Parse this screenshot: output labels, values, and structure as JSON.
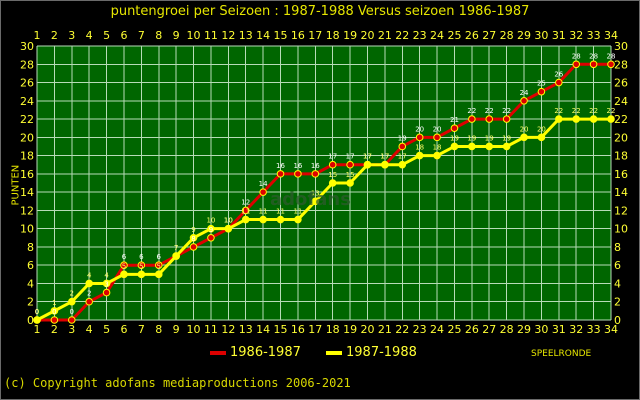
{
  "colors": {
    "background": "#000000",
    "plot_background": "#006600",
    "grid": "#b7dcb7",
    "axis_text": "#ffff33",
    "series_1986_1987": "#dd0000",
    "series_1987_1988": "#ffff00",
    "marker_edge": "#ffff00",
    "legend_text": "#ffff33"
  },
  "chart_data": {
    "type": "line",
    "title": "puntengroei per Seizoen : 1987-1988 Versus seizoen 1986-1987",
    "xlabel": "SPEELRONDE",
    "ylabel": "PUNTEN",
    "x": [
      1,
      2,
      3,
      4,
      5,
      6,
      7,
      8,
      9,
      10,
      11,
      12,
      13,
      14,
      15,
      16,
      17,
      18,
      19,
      20,
      21,
      22,
      23,
      24,
      25,
      26,
      27,
      28,
      29,
      30,
      31,
      32,
      33,
      34
    ],
    "xlim": [
      1,
      34
    ],
    "ylim": [
      0,
      30
    ],
    "y_ticks": [
      0,
      2,
      4,
      6,
      8,
      10,
      12,
      14,
      16,
      18,
      20,
      22,
      24,
      26,
      28,
      30
    ],
    "grid": true,
    "legend_position": "bottom",
    "series": [
      {
        "name": "1986-1987",
        "color": "#dd0000",
        "values": [
          0,
          0,
          0,
          2,
          3,
          6,
          6,
          6,
          7,
          8,
          9,
          10,
          12,
          14,
          16,
          16,
          16,
          17,
          17,
          17,
          17,
          19,
          20,
          20,
          21,
          22,
          22,
          22,
          24,
          25,
          26,
          28,
          28,
          28
        ]
      },
      {
        "name": "1987-1988",
        "color": "#ffff00",
        "values": [
          0,
          1,
          2,
          4,
          4,
          5,
          5,
          5,
          7,
          9,
          10,
          10,
          11,
          11,
          11,
          11,
          13,
          15,
          15,
          17,
          17,
          17,
          18,
          18,
          19,
          19,
          19,
          19,
          20,
          20,
          22,
          22,
          22,
          22
        ]
      }
    ]
  },
  "watermark": "adofans",
  "footer": {
    "copyright": "(c) Copyright adofans mediaproductions 2006-2021"
  }
}
